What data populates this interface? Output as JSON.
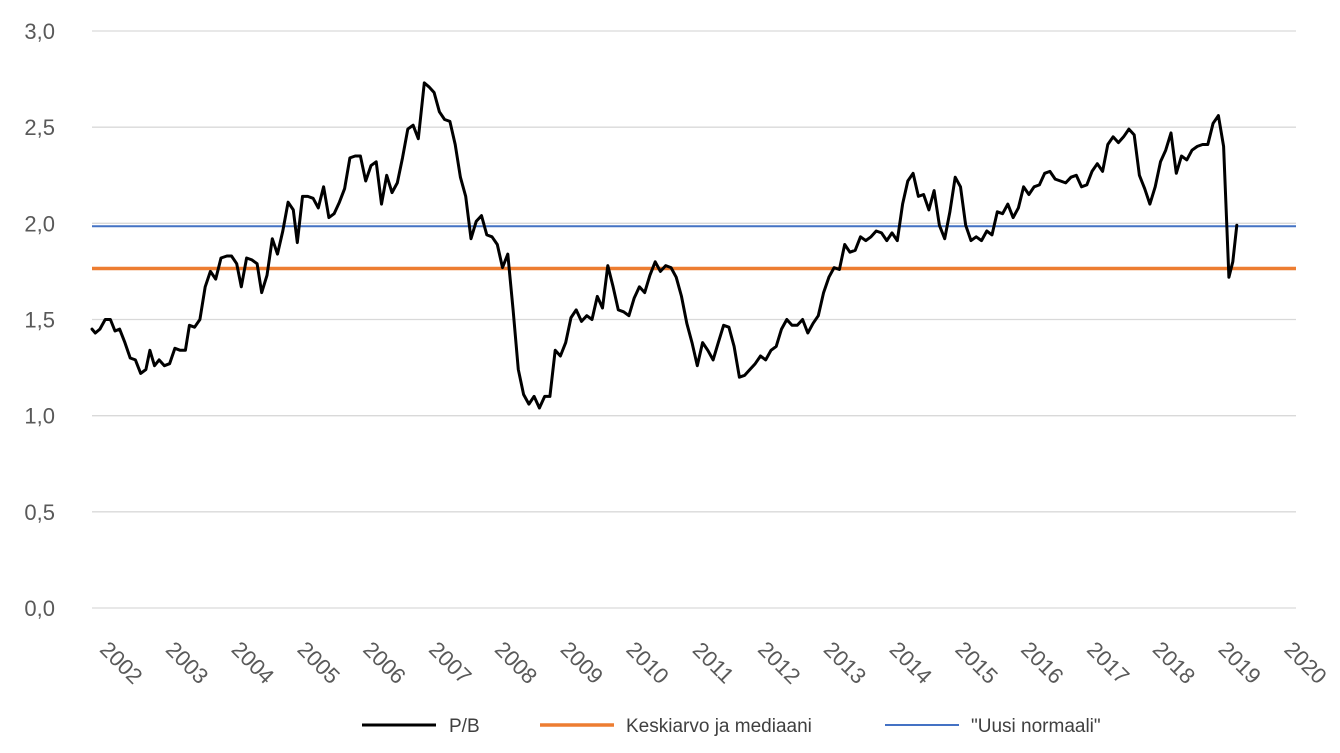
{
  "chart_data": {
    "type": "line",
    "title": "",
    "xlabel": "",
    "ylabel": "",
    "ylim": [
      0,
      3
    ],
    "y_ticks": [
      "0,0",
      "0,5",
      "1,0",
      "1,5",
      "2,0",
      "2,5",
      "3,0"
    ],
    "y_tick_values": [
      0,
      0.5,
      1.0,
      1.5,
      2.0,
      2.5,
      3.0
    ],
    "x_range": [
      2002.0,
      2020.3
    ],
    "x_ticks": [
      "2002",
      "2003",
      "2004",
      "2005",
      "2006",
      "2007",
      "2008",
      "2009",
      "2010",
      "2011",
      "2012",
      "2013",
      "2014",
      "2015",
      "2016",
      "2017",
      "2018",
      "2019",
      "2020"
    ],
    "grid": true,
    "legend_position": "bottom",
    "series": [
      {
        "name": "P/B",
        "color": "#000000",
        "kind": "line",
        "points": [
          [
            2002.0,
            1.45
          ],
          [
            2002.05,
            1.43
          ],
          [
            2002.12,
            1.45
          ],
          [
            2002.2,
            1.5
          ],
          [
            2002.28,
            1.5
          ],
          [
            2002.35,
            1.44
          ],
          [
            2002.42,
            1.45
          ],
          [
            2002.5,
            1.38
          ],
          [
            2002.58,
            1.3
          ],
          [
            2002.66,
            1.29
          ],
          [
            2002.74,
            1.22
          ],
          [
            2002.82,
            1.24
          ],
          [
            2002.88,
            1.34
          ],
          [
            2002.95,
            1.26
          ],
          [
            2003.02,
            1.29
          ],
          [
            2003.1,
            1.26
          ],
          [
            2003.18,
            1.27
          ],
          [
            2003.26,
            1.35
          ],
          [
            2003.34,
            1.34
          ],
          [
            2003.42,
            1.34
          ],
          [
            2003.48,
            1.47
          ],
          [
            2003.56,
            1.46
          ],
          [
            2003.64,
            1.5
          ],
          [
            2003.72,
            1.67
          ],
          [
            2003.8,
            1.75
          ],
          [
            2003.88,
            1.71
          ],
          [
            2003.96,
            1.82
          ],
          [
            2004.05,
            1.83
          ],
          [
            2004.12,
            1.83
          ],
          [
            2004.2,
            1.79
          ],
          [
            2004.27,
            1.67
          ],
          [
            2004.35,
            1.82
          ],
          [
            2004.43,
            1.81
          ],
          [
            2004.51,
            1.79
          ],
          [
            2004.58,
            1.64
          ],
          [
            2004.66,
            1.73
          ],
          [
            2004.74,
            1.92
          ],
          [
            2004.82,
            1.84
          ],
          [
            2004.9,
            1.96
          ],
          [
            2004.98,
            2.11
          ],
          [
            2005.06,
            2.07
          ],
          [
            2005.12,
            1.9
          ],
          [
            2005.2,
            2.14
          ],
          [
            2005.28,
            2.14
          ],
          [
            2005.36,
            2.13
          ],
          [
            2005.44,
            2.08
          ],
          [
            2005.52,
            2.19
          ],
          [
            2005.6,
            2.03
          ],
          [
            2005.68,
            2.05
          ],
          [
            2005.76,
            2.11
          ],
          [
            2005.84,
            2.18
          ],
          [
            2005.92,
            2.34
          ],
          [
            2006.0,
            2.35
          ],
          [
            2006.08,
            2.35
          ],
          [
            2006.16,
            2.22
          ],
          [
            2006.24,
            2.3
          ],
          [
            2006.32,
            2.32
          ],
          [
            2006.4,
            2.1
          ],
          [
            2006.48,
            2.25
          ],
          [
            2006.56,
            2.16
          ],
          [
            2006.64,
            2.21
          ],
          [
            2006.72,
            2.34
          ],
          [
            2006.8,
            2.49
          ],
          [
            2006.88,
            2.51
          ],
          [
            2006.96,
            2.44
          ],
          [
            2007.05,
            2.73
          ],
          [
            2007.12,
            2.71
          ],
          [
            2007.2,
            2.68
          ],
          [
            2007.28,
            2.58
          ],
          [
            2007.36,
            2.54
          ],
          [
            2007.44,
            2.53
          ],
          [
            2007.52,
            2.41
          ],
          [
            2007.6,
            2.24
          ],
          [
            2007.68,
            2.14
          ],
          [
            2007.76,
            1.92
          ],
          [
            2007.84,
            2.01
          ],
          [
            2007.92,
            2.04
          ],
          [
            2008.0,
            1.94
          ],
          [
            2008.08,
            1.93
          ],
          [
            2008.16,
            1.89
          ],
          [
            2008.24,
            1.77
          ],
          [
            2008.32,
            1.84
          ],
          [
            2008.4,
            1.55
          ],
          [
            2008.48,
            1.24
          ],
          [
            2008.56,
            1.11
          ],
          [
            2008.64,
            1.06
          ],
          [
            2008.72,
            1.1
          ],
          [
            2008.8,
            1.04
          ],
          [
            2008.88,
            1.1
          ],
          [
            2008.96,
            1.1
          ],
          [
            2009.04,
            1.34
          ],
          [
            2009.12,
            1.31
          ],
          [
            2009.2,
            1.38
          ],
          [
            2009.28,
            1.51
          ],
          [
            2009.36,
            1.55
          ],
          [
            2009.44,
            1.49
          ],
          [
            2009.52,
            1.52
          ],
          [
            2009.6,
            1.5
          ],
          [
            2009.68,
            1.62
          ],
          [
            2009.76,
            1.56
          ],
          [
            2009.84,
            1.78
          ],
          [
            2009.92,
            1.67
          ],
          [
            2010.0,
            1.55
          ],
          [
            2010.08,
            1.54
          ],
          [
            2010.16,
            1.52
          ],
          [
            2010.24,
            1.61
          ],
          [
            2010.32,
            1.67
          ],
          [
            2010.4,
            1.64
          ],
          [
            2010.48,
            1.73
          ],
          [
            2010.56,
            1.8
          ],
          [
            2010.64,
            1.75
          ],
          [
            2010.72,
            1.78
          ],
          [
            2010.8,
            1.77
          ],
          [
            2010.88,
            1.72
          ],
          [
            2010.96,
            1.62
          ],
          [
            2011.04,
            1.48
          ],
          [
            2011.12,
            1.38
          ],
          [
            2011.2,
            1.26
          ],
          [
            2011.28,
            1.38
          ],
          [
            2011.36,
            1.34
          ],
          [
            2011.44,
            1.29
          ],
          [
            2011.52,
            1.38
          ],
          [
            2011.6,
            1.47
          ],
          [
            2011.68,
            1.46
          ],
          [
            2011.76,
            1.36
          ],
          [
            2011.84,
            1.2
          ],
          [
            2011.92,
            1.21
          ],
          [
            2012.0,
            1.24
          ],
          [
            2012.08,
            1.27
          ],
          [
            2012.16,
            1.31
          ],
          [
            2012.24,
            1.29
          ],
          [
            2012.32,
            1.34
          ],
          [
            2012.4,
            1.36
          ],
          [
            2012.48,
            1.45
          ],
          [
            2012.56,
            1.5
          ],
          [
            2012.64,
            1.47
          ],
          [
            2012.72,
            1.47
          ],
          [
            2012.8,
            1.5
          ],
          [
            2012.88,
            1.43
          ],
          [
            2012.96,
            1.48
          ],
          [
            2013.04,
            1.52
          ],
          [
            2013.12,
            1.64
          ],
          [
            2013.2,
            1.72
          ],
          [
            2013.28,
            1.77
          ],
          [
            2013.36,
            1.76
          ],
          [
            2013.44,
            1.89
          ],
          [
            2013.52,
            1.85
          ],
          [
            2013.6,
            1.86
          ],
          [
            2013.68,
            1.93
          ],
          [
            2013.76,
            1.91
          ],
          [
            2013.84,
            1.93
          ],
          [
            2013.92,
            1.96
          ],
          [
            2014.0,
            1.95
          ],
          [
            2014.08,
            1.91
          ],
          [
            2014.16,
            1.95
          ],
          [
            2014.24,
            1.91
          ],
          [
            2014.32,
            2.1
          ],
          [
            2014.4,
            2.22
          ],
          [
            2014.48,
            2.26
          ],
          [
            2014.56,
            2.14
          ],
          [
            2014.64,
            2.15
          ],
          [
            2014.72,
            2.07
          ],
          [
            2014.8,
            2.17
          ],
          [
            2014.88,
            1.99
          ],
          [
            2014.96,
            1.92
          ],
          [
            2015.04,
            2.06
          ],
          [
            2015.12,
            2.24
          ],
          [
            2015.2,
            2.19
          ],
          [
            2015.28,
            1.99
          ],
          [
            2015.36,
            1.91
          ],
          [
            2015.44,
            1.93
          ],
          [
            2015.52,
            1.91
          ],
          [
            2015.6,
            1.96
          ],
          [
            2015.68,
            1.94
          ],
          [
            2015.76,
            2.06
          ],
          [
            2015.84,
            2.05
          ],
          [
            2015.92,
            2.1
          ],
          [
            2016.0,
            2.03
          ],
          [
            2016.08,
            2.08
          ],
          [
            2016.16,
            2.19
          ],
          [
            2016.24,
            2.15
          ],
          [
            2016.32,
            2.19
          ],
          [
            2016.4,
            2.2
          ],
          [
            2016.48,
            2.26
          ],
          [
            2016.56,
            2.27
          ],
          [
            2016.64,
            2.23
          ],
          [
            2016.72,
            2.22
          ],
          [
            2016.8,
            2.21
          ],
          [
            2016.88,
            2.24
          ],
          [
            2016.96,
            2.25
          ],
          [
            2017.04,
            2.19
          ],
          [
            2017.12,
            2.2
          ],
          [
            2017.2,
            2.27
          ],
          [
            2017.28,
            2.31
          ],
          [
            2017.36,
            2.27
          ],
          [
            2017.44,
            2.41
          ],
          [
            2017.52,
            2.45
          ],
          [
            2017.6,
            2.42
          ],
          [
            2017.68,
            2.45
          ],
          [
            2017.76,
            2.49
          ],
          [
            2017.84,
            2.46
          ],
          [
            2017.92,
            2.25
          ],
          [
            2018.0,
            2.18
          ],
          [
            2018.08,
            2.1
          ],
          [
            2018.16,
            2.19
          ],
          [
            2018.24,
            2.32
          ],
          [
            2018.32,
            2.38
          ],
          [
            2018.4,
            2.47
          ],
          [
            2018.48,
            2.26
          ],
          [
            2018.56,
            2.35
          ],
          [
            2018.64,
            2.33
          ],
          [
            2018.72,
            2.38
          ],
          [
            2018.8,
            2.4
          ],
          [
            2018.88,
            2.41
          ],
          [
            2018.96,
            2.41
          ],
          [
            2019.04,
            2.52
          ],
          [
            2019.12,
            2.56
          ],
          [
            2019.2,
            2.4
          ],
          [
            2019.28,
            1.72
          ],
          [
            2019.34,
            1.8
          ],
          [
            2019.4,
            1.99
          ]
        ]
      },
      {
        "name": "Keskiarvo ja mediaani",
        "color": "#ed7d31",
        "kind": "hline",
        "value": 1.765
      },
      {
        "name": "\"Uusi normaali\"",
        "color": "#4472c4",
        "kind": "hline",
        "value": 1.985
      }
    ]
  }
}
